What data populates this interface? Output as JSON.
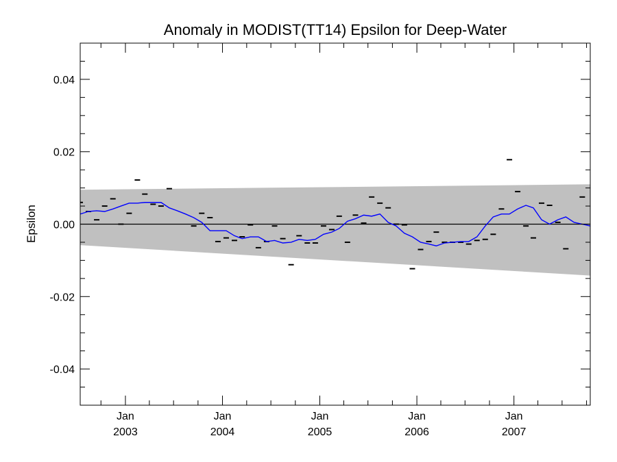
{
  "chart_data": {
    "type": "line",
    "title": "Anomaly in MODIST(TT14) Epsilon for Deep-Water",
    "xlabel": "",
    "ylabel": "Epsilon",
    "xlim": [
      "2002-07-15",
      "2007-10-15"
    ],
    "ylim": [
      -0.05,
      0.05
    ],
    "yticks": [
      -0.04,
      -0.02,
      0.0,
      0.02,
      0.04
    ],
    "ytick_labels": [
      "-0.04",
      "-0.02",
      "0.00",
      "0.02",
      "0.04"
    ],
    "xticks": [
      {
        "date": "2003-01-01",
        "month": "Jan",
        "year": "2003"
      },
      {
        "date": "2004-01-01",
        "month": "Jan",
        "year": "2004"
      },
      {
        "date": "2005-01-01",
        "month": "Jan",
        "year": "2005"
      },
      {
        "date": "2006-01-01",
        "month": "Jan",
        "year": "2006"
      },
      {
        "date": "2007-01-01",
        "month": "Jan",
        "year": "2007"
      }
    ],
    "grid": false,
    "band": {
      "color": "#c0c0c0",
      "upper": [
        {
          "x": "2002-07-15",
          "y": 0.0095
        },
        {
          "x": "2007-10-15",
          "y": 0.011
        }
      ],
      "lower": [
        {
          "x": "2002-07-15",
          "y": -0.0058
        },
        {
          "x": "2007-10-15",
          "y": -0.0142
        }
      ]
    },
    "zero_line": {
      "y": 0.0,
      "color": "#000000"
    },
    "series": [
      {
        "kind": "markers",
        "color": "#000000",
        "points": [
          {
            "x": "2002-07-15",
            "y": 0.006
          },
          {
            "x": "2002-08-15",
            "y": 0.0035
          },
          {
            "x": "2002-09-15",
            "y": 0.0012
          },
          {
            "x": "2002-10-15",
            "y": 0.005
          },
          {
            "x": "2002-11-15",
            "y": 0.007
          },
          {
            "x": "2002-12-15",
            "y": 0.0
          },
          {
            "x": "2003-01-15",
            "y": 0.003
          },
          {
            "x": "2003-02-15",
            "y": 0.0122
          },
          {
            "x": "2003-03-15",
            "y": 0.0083
          },
          {
            "x": "2003-04-15",
            "y": 0.0055
          },
          {
            "x": "2003-05-15",
            "y": 0.005
          },
          {
            "x": "2003-06-15",
            "y": 0.0098
          },
          {
            "x": "2003-09-15",
            "y": -0.0005
          },
          {
            "x": "2003-10-15",
            "y": 0.003
          },
          {
            "x": "2003-11-15",
            "y": 0.0018
          },
          {
            "x": "2003-12-15",
            "y": -0.0048
          },
          {
            "x": "2004-01-15",
            "y": -0.0038
          },
          {
            "x": "2004-02-15",
            "y": -0.0045
          },
          {
            "x": "2004-03-15",
            "y": -0.0035
          },
          {
            "x": "2004-04-15",
            "y": -0.0002
          },
          {
            "x": "2004-05-15",
            "y": -0.0065
          },
          {
            "x": "2004-06-15",
            "y": -0.0048
          },
          {
            "x": "2004-07-15",
            "y": -0.0005
          },
          {
            "x": "2004-08-15",
            "y": -0.004
          },
          {
            "x": "2004-09-15",
            "y": -0.0112
          },
          {
            "x": "2004-10-15",
            "y": -0.0032
          },
          {
            "x": "2004-11-15",
            "y": -0.0052
          },
          {
            "x": "2004-12-15",
            "y": -0.0052
          },
          {
            "x": "2005-01-15",
            "y": -0.0005
          },
          {
            "x": "2005-02-15",
            "y": -0.0015
          },
          {
            "x": "2005-03-15",
            "y": 0.0022
          },
          {
            "x": "2005-04-15",
            "y": -0.005
          },
          {
            "x": "2005-05-15",
            "y": 0.0025
          },
          {
            "x": "2005-06-15",
            "y": 0.0003
          },
          {
            "x": "2005-07-15",
            "y": 0.0075
          },
          {
            "x": "2005-08-15",
            "y": 0.0058
          },
          {
            "x": "2005-09-15",
            "y": 0.0045
          },
          {
            "x": "2005-10-15",
            "y": 0.0
          },
          {
            "x": "2005-11-15",
            "y": -0.0002
          },
          {
            "x": "2005-12-15",
            "y": -0.0123
          },
          {
            "x": "2006-01-15",
            "y": -0.007
          },
          {
            "x": "2006-02-15",
            "y": -0.0048
          },
          {
            "x": "2006-03-15",
            "y": -0.0022
          },
          {
            "x": "2006-04-15",
            "y": -0.005
          },
          {
            "x": "2006-05-15",
            "y": -0.005
          },
          {
            "x": "2006-06-15",
            "y": -0.005
          },
          {
            "x": "2006-07-15",
            "y": -0.0055
          },
          {
            "x": "2006-08-15",
            "y": -0.0045
          },
          {
            "x": "2006-09-15",
            "y": -0.0042
          },
          {
            "x": "2006-10-15",
            "y": -0.0028
          },
          {
            "x": "2006-11-15",
            "y": 0.0042
          },
          {
            "x": "2006-12-15",
            "y": 0.0178
          },
          {
            "x": "2007-01-15",
            "y": 0.009
          },
          {
            "x": "2007-02-15",
            "y": -0.0005
          },
          {
            "x": "2007-03-15",
            "y": -0.0038
          },
          {
            "x": "2007-04-15",
            "y": 0.0058
          },
          {
            "x": "2007-05-15",
            "y": 0.0052
          },
          {
            "x": "2007-06-15",
            "y": 0.0005
          },
          {
            "x": "2007-07-15",
            "y": -0.0068
          },
          {
            "x": "2007-09-15",
            "y": 0.0075
          }
        ]
      },
      {
        "kind": "line",
        "color": "#0000ff",
        "points": [
          {
            "x": "2002-07-15",
            "y": 0.0028
          },
          {
            "x": "2002-08-15",
            "y": 0.0035
          },
          {
            "x": "2002-09-15",
            "y": 0.0037
          },
          {
            "x": "2002-10-15",
            "y": 0.0035
          },
          {
            "x": "2002-11-15",
            "y": 0.0042
          },
          {
            "x": "2002-12-15",
            "y": 0.005
          },
          {
            "x": "2003-01-15",
            "y": 0.0058
          },
          {
            "x": "2003-02-15",
            "y": 0.0058
          },
          {
            "x": "2003-03-15",
            "y": 0.006
          },
          {
            "x": "2003-04-15",
            "y": 0.006
          },
          {
            "x": "2003-05-15",
            "y": 0.006
          },
          {
            "x": "2003-06-15",
            "y": 0.0045
          },
          {
            "x": "2003-07-15",
            "y": 0.0037
          },
          {
            "x": "2003-08-15",
            "y": 0.0028
          },
          {
            "x": "2003-09-15",
            "y": 0.0018
          },
          {
            "x": "2003-10-15",
            "y": 0.0005
          },
          {
            "x": "2003-11-15",
            "y": -0.0018
          },
          {
            "x": "2003-12-15",
            "y": -0.0018
          },
          {
            "x": "2004-01-15",
            "y": -0.0018
          },
          {
            "x": "2004-02-15",
            "y": -0.0032
          },
          {
            "x": "2004-03-15",
            "y": -0.004
          },
          {
            "x": "2004-04-15",
            "y": -0.0035
          },
          {
            "x": "2004-05-15",
            "y": -0.0035
          },
          {
            "x": "2004-06-15",
            "y": -0.0048
          },
          {
            "x": "2004-07-15",
            "y": -0.0045
          },
          {
            "x": "2004-08-15",
            "y": -0.0052
          },
          {
            "x": "2004-09-15",
            "y": -0.005
          },
          {
            "x": "2004-10-15",
            "y": -0.0042
          },
          {
            "x": "2004-11-15",
            "y": -0.0045
          },
          {
            "x": "2004-12-15",
            "y": -0.0042
          },
          {
            "x": "2005-01-15",
            "y": -0.0028
          },
          {
            "x": "2005-02-15",
            "y": -0.0022
          },
          {
            "x": "2005-03-15",
            "y": -0.0012
          },
          {
            "x": "2005-04-15",
            "y": 0.0008
          },
          {
            "x": "2005-05-15",
            "y": 0.0015
          },
          {
            "x": "2005-06-15",
            "y": 0.0025
          },
          {
            "x": "2005-07-15",
            "y": 0.0022
          },
          {
            "x": "2005-08-15",
            "y": 0.0028
          },
          {
            "x": "2005-09-15",
            "y": 0.0005
          },
          {
            "x": "2005-10-15",
            "y": -0.0005
          },
          {
            "x": "2005-11-15",
            "y": -0.0025
          },
          {
            "x": "2005-12-15",
            "y": -0.0035
          },
          {
            "x": "2006-01-15",
            "y": -0.005
          },
          {
            "x": "2006-02-15",
            "y": -0.0055
          },
          {
            "x": "2006-03-15",
            "y": -0.006
          },
          {
            "x": "2006-04-15",
            "y": -0.0052
          },
          {
            "x": "2006-05-15",
            "y": -0.005
          },
          {
            "x": "2006-06-15",
            "y": -0.0048
          },
          {
            "x": "2006-07-15",
            "y": -0.0048
          },
          {
            "x": "2006-08-15",
            "y": -0.0035
          },
          {
            "x": "2006-09-15",
            "y": -0.0005
          },
          {
            "x": "2006-10-15",
            "y": 0.002
          },
          {
            "x": "2006-11-15",
            "y": 0.0028
          },
          {
            "x": "2006-12-15",
            "y": 0.0028
          },
          {
            "x": "2007-01-15",
            "y": 0.0042
          },
          {
            "x": "2007-02-15",
            "y": 0.0052
          },
          {
            "x": "2007-03-15",
            "y": 0.0045
          },
          {
            "x": "2007-04-15",
            "y": 0.0012
          },
          {
            "x": "2007-05-15",
            "y": 0.0
          },
          {
            "x": "2007-06-15",
            "y": 0.0012
          },
          {
            "x": "2007-07-15",
            "y": 0.002
          },
          {
            "x": "2007-08-15",
            "y": 0.0005
          },
          {
            "x": "2007-09-15",
            "y": 0.0
          },
          {
            "x": "2007-10-15",
            "y": -0.0005
          }
        ]
      }
    ]
  }
}
